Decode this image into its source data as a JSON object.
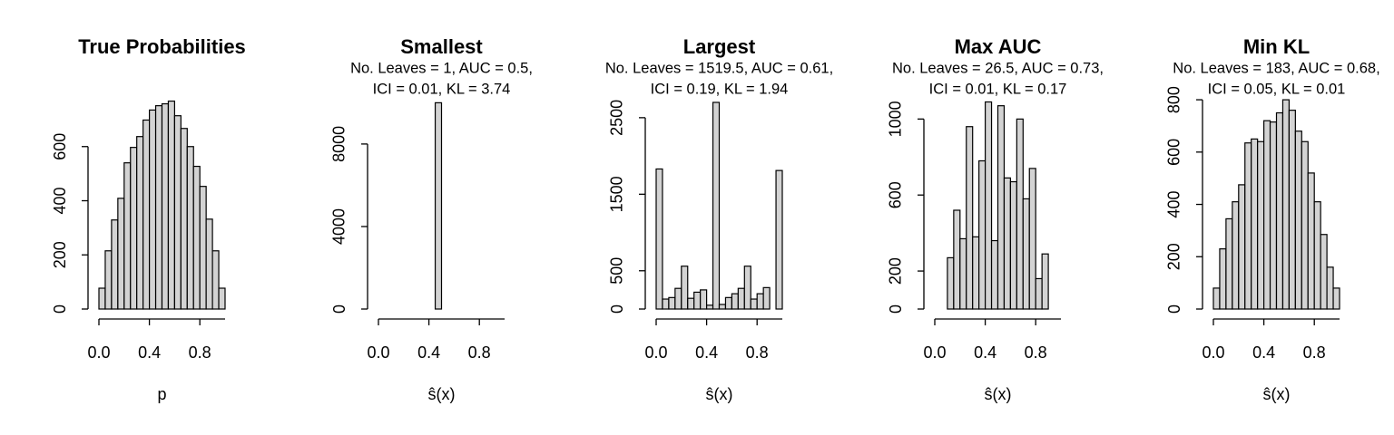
{
  "chart_data": [
    {
      "type": "histogram",
      "title": "True Probabilities",
      "xlabel": "p",
      "bins": [
        0,
        0.05,
        0.1,
        0.15,
        0.2,
        0.25,
        0.3,
        0.35,
        0.4,
        0.45,
        0.5,
        0.55,
        0.6,
        0.65,
        0.7,
        0.75,
        0.8,
        0.85,
        0.9,
        0.95,
        1
      ],
      "counts": [
        77,
        215,
        329,
        409,
        540,
        597,
        637,
        698,
        735,
        751,
        758,
        768,
        714,
        667,
        600,
        527,
        453,
        332,
        215,
        77
      ],
      "color": "#d3d3d3",
      "xlim": [
        0,
        1
      ],
      "ylim": [
        0,
        800
      ],
      "xticks": [
        {
          "value": 0,
          "label": "0.0"
        },
        0.4,
        0.8
      ],
      "yticks": [
        0,
        200,
        400,
        600
      ]
    },
    {
      "type": "histogram",
      "title": "Smallest",
      "subtitle": [
        "No. Leaves = 1, AUC = 0.5,",
        "ICI = 0.01, KL = 3.74"
      ],
      "xlabel": "ŝ(x)",
      "bins": [
        0,
        0.05,
        0.1,
        0.15,
        0.2,
        0.25,
        0.3,
        0.35,
        0.4,
        0.45,
        0.5,
        0.55,
        0.6,
        0.65,
        0.7,
        0.75,
        0.8,
        0.85,
        0.9,
        0.95,
        1
      ],
      "counts": [
        0,
        0,
        0,
        0,
        0,
        0,
        0,
        0,
        0,
        10000,
        0,
        0,
        0,
        0,
        0,
        0,
        0,
        0,
        0,
        0
      ],
      "color": "#d3d3d3",
      "xlim": [
        0,
        1
      ],
      "ylim": [
        0,
        10500
      ],
      "xticks": [
        {
          "value": 0,
          "label": "0.0"
        },
        0.4,
        0.8
      ],
      "yticks": [
        0,
        4000,
        8000
      ]
    },
    {
      "type": "histogram",
      "title": "Largest",
      "subtitle": [
        "No. Leaves = 1519.5, AUC = 0.61,",
        "ICI = 0.19, KL = 1.94"
      ],
      "xlabel": "ŝ(x)",
      "bins": [
        0,
        0.05,
        0.1,
        0.15,
        0.2,
        0.25,
        0.3,
        0.35,
        0.4,
        0.45,
        0.5,
        0.55,
        0.6,
        0.65,
        0.7,
        0.75,
        0.8,
        0.85,
        0.9,
        0.95,
        1
      ],
      "counts": [
        1830,
        130,
        150,
        270,
        560,
        140,
        220,
        250,
        50,
        2700,
        60,
        150,
        200,
        270,
        560,
        130,
        200,
        280,
        0,
        1810
      ],
      "color": "#d3d3d3",
      "xlim": [
        0,
        1
      ],
      "ylim": [
        0,
        2830
      ],
      "xticks": [
        {
          "value": 0,
          "label": "0.0"
        },
        0.4,
        0.8
      ],
      "yticks": [
        0,
        500,
        1500,
        2500
      ]
    },
    {
      "type": "histogram",
      "title": "Max AUC",
      "subtitle": [
        "No. Leaves = 26.5, AUC = 0.73,",
        "ICI = 0.01, KL = 0.17"
      ],
      "xlabel": "ŝ(x)",
      "bins": [
        0,
        0.05,
        0.1,
        0.15,
        0.2,
        0.25,
        0.3,
        0.35,
        0.4,
        0.45,
        0.5,
        0.55,
        0.6,
        0.65,
        0.7,
        0.75,
        0.8,
        0.85,
        0.9,
        0.95,
        1
      ],
      "counts": [
        0,
        0,
        270,
        520,
        370,
        960,
        380,
        780,
        1090,
        360,
        1070,
        690,
        670,
        1000,
        580,
        740,
        160,
        290,
        0,
        0
      ],
      "color": "#d3d3d3",
      "xlim": [
        0,
        1
      ],
      "ylim": [
        0,
        1140
      ],
      "xticks": [
        {
          "value": 0,
          "label": "0.0"
        },
        0.4,
        0.8
      ],
      "yticks": [
        0,
        200,
        600,
        1000
      ]
    },
    {
      "type": "histogram",
      "title": "Min KL",
      "subtitle": [
        "No. Leaves = 183, AUC = 0.68,",
        "ICI = 0.05, KL = 0.01"
      ],
      "xlabel": "ŝ(x)",
      "bins": [
        0,
        0.05,
        0.1,
        0.15,
        0.2,
        0.25,
        0.3,
        0.35,
        0.4,
        0.45,
        0.5,
        0.55,
        0.6,
        0.65,
        0.7,
        0.75,
        0.8,
        0.85,
        0.9,
        0.95,
        1
      ],
      "counts": [
        80,
        230,
        345,
        410,
        475,
        635,
        650,
        640,
        720,
        715,
        750,
        800,
        760,
        680,
        640,
        520,
        410,
        285,
        160,
        80
      ],
      "color": "#d3d3d3",
      "xlim": [
        0,
        1
      ],
      "ylim": [
        0,
        828
      ],
      "xticks": [
        {
          "value": 0,
          "label": "0.0"
        },
        0.4,
        0.8
      ],
      "yticks": [
        0,
        200,
        400,
        600,
        800
      ]
    }
  ]
}
